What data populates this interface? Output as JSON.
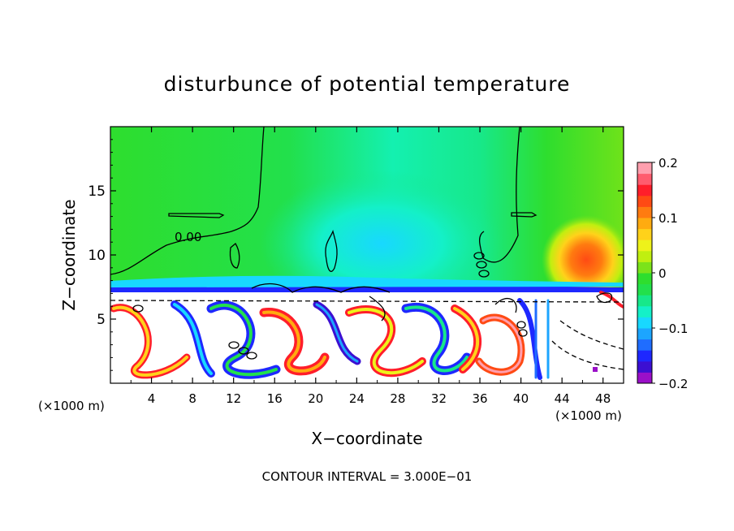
{
  "chart_data": {
    "type": "heatmap",
    "title": "disturbunce of potential temperature",
    "xlabel": "X−coordinate",
    "ylabel": "Z−coordinate",
    "x_unit_left": "(×1000 m)",
    "x_unit_right": "(×1000 m)",
    "xlim": [
      0,
      50
    ],
    "ylim": [
      0,
      20
    ],
    "x_ticks": [
      4,
      8,
      12,
      16,
      20,
      24,
      28,
      32,
      36,
      40,
      44,
      48
    ],
    "y_ticks": [
      5,
      10,
      15
    ],
    "contour_label": "0.00",
    "footer": "CONTOUR INTERVAL = 3.000E−01",
    "colorbar": {
      "min": -0.2,
      "max": 0.2,
      "tick_labels": [
        "0.2",
        "0.1",
        "0",
        "−0.1",
        "−0.2"
      ],
      "tick_values": [
        0.2,
        0.1,
        0.0,
        -0.1,
        -0.2
      ],
      "colors": [
        "#9a10c8",
        "#3c0fd2",
        "#1e28ff",
        "#1f6dff",
        "#1ca5ff",
        "#18d8ff",
        "#14f0c8",
        "#17e88a",
        "#22e04c",
        "#2ede2e",
        "#7be31a",
        "#c0ef10",
        "#eef21a",
        "#ffd21a",
        "#ffab10",
        "#ff7b10",
        "#ff4a14",
        "#ff1e2a",
        "#ff5c6e",
        "#ff9fae"
      ]
    }
  }
}
